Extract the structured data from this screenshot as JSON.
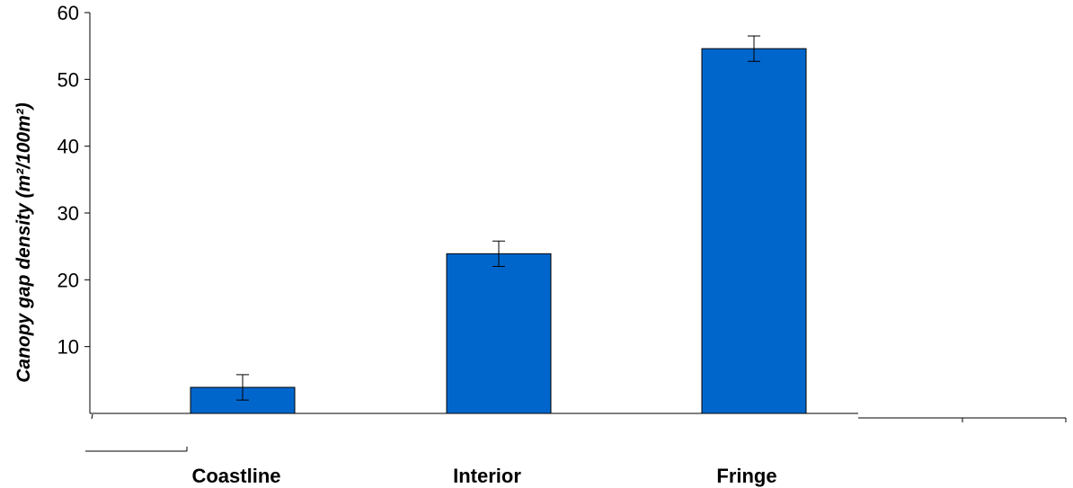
{
  "chart_data": {
    "type": "bar",
    "categories": [
      "Coastline",
      "Interior",
      "Fringe"
    ],
    "values": [
      3.9,
      23.9,
      54.6
    ],
    "errors": [
      1.9,
      1.9,
      1.9
    ],
    "ylabel": "Canopy gap density (m²/100m²)",
    "ylim": [
      0,
      60
    ],
    "yticks": [
      10,
      20,
      30,
      40,
      50,
      60
    ],
    "bar_color": "#0066cc",
    "grid": false,
    "legend": "none"
  }
}
